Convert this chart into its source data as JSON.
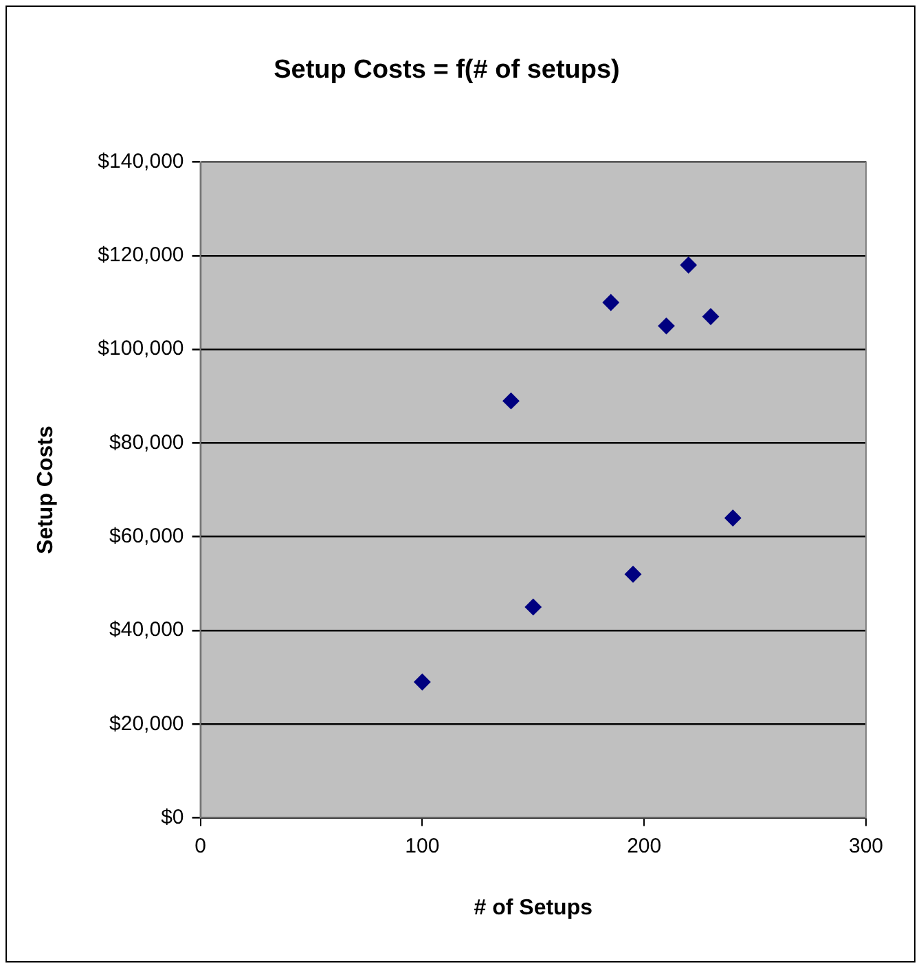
{
  "chart_data": {
    "type": "scatter",
    "title": "Setup Costs = f(# of setups)",
    "xlabel": "# of Setups",
    "ylabel": "Setup Costs",
    "x": [
      100,
      140,
      150,
      185,
      195,
      210,
      220,
      230,
      240
    ],
    "values": [
      29000,
      89000,
      45000,
      110000,
      52000,
      105000,
      118000,
      107000,
      64000
    ],
    "color": "#000080",
    "marker": "diamond",
    "xlim": [
      0,
      300
    ],
    "xticks": [
      0,
      100,
      200,
      300
    ],
    "ylim": [
      0,
      140000
    ],
    "yticks": [
      {
        "value": 0,
        "label": "$0"
      },
      {
        "value": 20000,
        "label": "$20,000"
      },
      {
        "value": 40000,
        "label": "$40,000"
      },
      {
        "value": 60000,
        "label": "$60,000"
      },
      {
        "value": 80000,
        "label": "$80,000"
      },
      {
        "value": 100000,
        "label": "$100,000"
      },
      {
        "value": 120000,
        "label": "$120,000"
      },
      {
        "value": 140000,
        "label": "$140,000"
      }
    ],
    "grid": "y",
    "legend": false
  }
}
